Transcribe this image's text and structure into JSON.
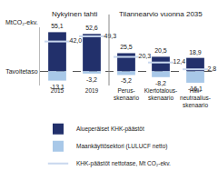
{
  "chart_data": {
    "type": "bar",
    "ylabel": "MtCO₂-ekv.",
    "annotations": [
      "Nykyinen tahti",
      "Tilannearvio vuonna 2035"
    ],
    "categories": [
      "2015",
      "2019",
      "Perus-\nskenaario",
      "Kiertotalous-\nskenaario",
      "Hiili-\nneutraalius-\nskenaario"
    ],
    "series": [
      {
        "name": "Alueperäiset KHK-päästöt",
        "type": "bar",
        "color": "#22306b",
        "values": [
          55.1,
          52.6,
          25.5,
          20.5,
          18.9
        ],
        "value_labels": [
          "55,1",
          "52,6",
          "25,5",
          "20,5",
          "18,9"
        ]
      },
      {
        "name": "Maankäyttösektori (LULUCF netto)",
        "type": "bar",
        "color": "#a8c8e8",
        "values": [
          -13.1,
          -3.2,
          -5.2,
          -8.2,
          -16.1
        ],
        "value_labels": [
          "-13,1",
          "-3,2",
          "-5,2",
          "-8,2",
          "-16,1"
        ]
      },
      {
        "name": "KHK-päästöt nettotase, Mt CO₂-ekv.",
        "type": "scatter",
        "color": "#c9d8ee",
        "marker": "line-ew-open",
        "values": [
          42.0,
          49.3,
          20.3,
          12.4,
          2.8
        ],
        "value_labels": [
          "42,0",
          "49,3",
          "20,3",
          "12,4",
          "2,8"
        ]
      }
    ],
    "stacked": true,
    "data_labels": true,
    "grid": true,
    "legend": "bottom",
    "tick_labels": true,
    "ylim": [
      -20,
      62
    ],
    "yticks": [
      {
        "value": 0,
        "label": "Tavoitetaso"
      }
    ]
  }
}
